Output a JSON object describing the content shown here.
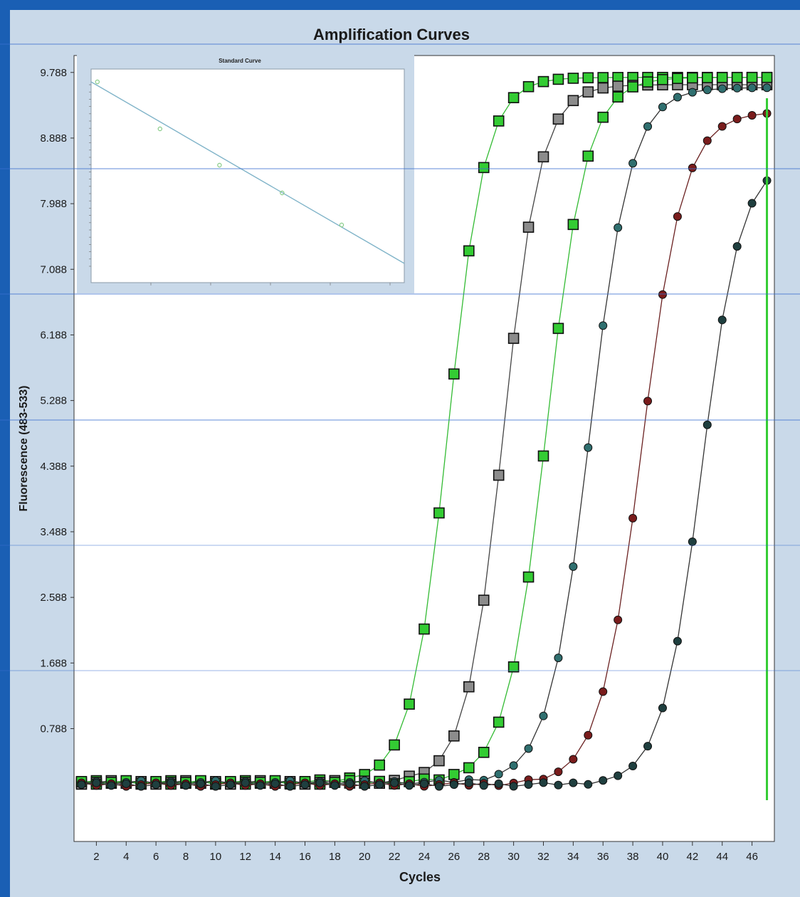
{
  "chart_data": [
    {
      "type": "line",
      "title": "Amplification Curves",
      "xlabel": "Cycles",
      "ylabel": "Fluorescence (483-533)",
      "xlim": [
        0.5,
        47.5
      ],
      "ylim": [
        -0.76,
        10.02
      ],
      "x_ticks": [
        2,
        4,
        6,
        8,
        10,
        12,
        14,
        16,
        18,
        20,
        22,
        24,
        26,
        28,
        30,
        32,
        34,
        36,
        38,
        40,
        42,
        44,
        46
      ],
      "x_tick_labels": [
        "2",
        "4",
        "6",
        "8",
        "10",
        "12",
        "14",
        "16",
        "18",
        "20",
        "22",
        "24",
        "26",
        "28",
        "30",
        "32",
        "34",
        "36",
        "38",
        "40",
        "42",
        "44",
        "46"
      ],
      "y_ticks": [
        0.788,
        1.688,
        2.588,
        3.488,
        4.388,
        5.288,
        6.188,
        7.088,
        7.988,
        8.888,
        9.788
      ],
      "y_tick_labels": [
        "0.788",
        "1.688",
        "2.588",
        "3.488",
        "4.388",
        "5.288",
        "6.188",
        "7.088",
        "7.988",
        "8.888",
        "9.788"
      ],
      "marker_line": {
        "x": 47,
        "color": "#33cc33"
      },
      "series": [
        {
          "marker": "square",
          "color": "#33cc33",
          "line_color": "#33bb33",
          "baseline": 0.05,
          "plateau": 9.72,
          "midpoint": 25.6,
          "scale": 1.25
        },
        {
          "marker": "square",
          "color": "#8c8c8c",
          "line_color": "#444444",
          "baseline": 0.05,
          "plateau": 9.62,
          "midpoint": 29.3,
          "scale": 1.25
        },
        {
          "marker": "square",
          "color": "#33cc33",
          "line_color": "#33bb33",
          "baseline": 0.05,
          "plateau": 9.72,
          "midpoint": 32.2,
          "scale": 1.35
        },
        {
          "marker": "circle",
          "color": "#2f6f6f",
          "line_color": "#333333",
          "baseline": 0.05,
          "plateau": 9.58,
          "midpoint": 35.1,
          "scale": 1.38
        },
        {
          "marker": "circle",
          "color": "#7a1c1c",
          "line_color": "#6a2020",
          "baseline": 0.02,
          "plateau": 9.25,
          "midpoint": 38.6,
          "scale": 1.42
        },
        {
          "marker": "circle",
          "color": "#1f3f3f",
          "line_color": "#333333",
          "baseline": 0.02,
          "plateau": 8.6,
          "midpoint": 42.6,
          "scale": 1.32
        }
      ]
    },
    {
      "type": "scatter",
      "title": "Standard Curve",
      "xlim": [
        0,
        1
      ],
      "ylim": [
        0,
        1
      ],
      "points": [
        {
          "x": 0.02,
          "y": 0.94
        },
        {
          "x": 0.22,
          "y": 0.72
        },
        {
          "x": 0.41,
          "y": 0.55
        },
        {
          "x": 0.61,
          "y": 0.42
        },
        {
          "x": 0.8,
          "y": 0.27
        }
      ],
      "fit": {
        "x0": 0.0,
        "y0": 0.94,
        "x1": 1.0,
        "y1": 0.09
      },
      "line_color": "#7fb3c8",
      "point_color": "#88cc88"
    }
  ]
}
